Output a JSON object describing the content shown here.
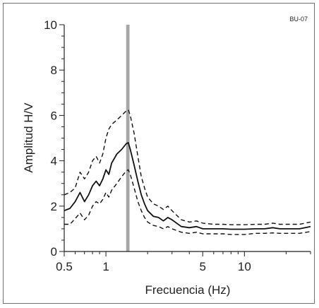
{
  "chart_data": {
    "type": "line",
    "title": "",
    "tag": "BU-07",
    "xlabel": "Frecuencia (Hz)",
    "ylabel": "Amplitud H/V",
    "xscale": "log",
    "xlim": [
      0.5,
      30
    ],
    "ylim": [
      0,
      10
    ],
    "x_tick_labels": [
      {
        "value": 0.5,
        "label": "0.5"
      },
      {
        "value": 1,
        "label": "1"
      },
      {
        "value": 5,
        "label": "5"
      },
      {
        "value": 10,
        "label": "10"
      }
    ],
    "y_tick_labels": [
      {
        "value": 0,
        "label": "0"
      },
      {
        "value": 2,
        "label": "2"
      },
      {
        "value": 4,
        "label": "4"
      },
      {
        "value": 6,
        "label": "6"
      },
      {
        "value": 8,
        "label": "8"
      },
      {
        "value": 10,
        "label": "10"
      }
    ],
    "grid": false,
    "legend": "none",
    "peak_band": {
      "x0": 1.4,
      "x1": 1.48,
      "color": "#a6a6a6"
    },
    "series": [
      {
        "style": "solid",
        "color": "#111111",
        "x": [
          0.5,
          0.55,
          0.6,
          0.65,
          0.7,
          0.75,
          0.8,
          0.85,
          0.9,
          0.95,
          1.0,
          1.05,
          1.1,
          1.2,
          1.3,
          1.4,
          1.45,
          1.5,
          1.6,
          1.7,
          1.8,
          1.9,
          2.0,
          2.2,
          2.4,
          2.6,
          2.8,
          3.0,
          3.5,
          4.0,
          4.5,
          5.0,
          6.0,
          7.0,
          8.0,
          10.0,
          12.0,
          14.0,
          16.0,
          18.0,
          20.0,
          25.0,
          30.0
        ],
        "values": [
          1.8,
          1.9,
          2.2,
          2.6,
          2.2,
          2.5,
          2.9,
          3.1,
          2.9,
          3.2,
          3.6,
          3.4,
          3.9,
          4.3,
          4.5,
          4.75,
          4.8,
          4.5,
          3.8,
          3.1,
          2.5,
          2.1,
          1.8,
          1.55,
          1.5,
          1.35,
          1.5,
          1.4,
          1.1,
          1.05,
          1.1,
          1.0,
          1.0,
          1.0,
          0.98,
          0.98,
          1.0,
          1.0,
          1.05,
          1.0,
          1.0,
          1.0,
          1.1
        ]
      },
      {
        "style": "dashed",
        "color": "#111111",
        "x": [
          0.5,
          0.55,
          0.6,
          0.65,
          0.7,
          0.75,
          0.8,
          0.85,
          0.9,
          0.95,
          1.0,
          1.05,
          1.1,
          1.2,
          1.3,
          1.4,
          1.45,
          1.5,
          1.6,
          1.7,
          1.8,
          1.9,
          2.0,
          2.2,
          2.4,
          2.6,
          2.8,
          3.0,
          3.5,
          4.0,
          4.5,
          5.0,
          6.0,
          7.0,
          8.0,
          10.0,
          12.0,
          14.0,
          16.0,
          18.0,
          20.0,
          25.0,
          30.0
        ],
        "values": [
          2.5,
          2.6,
          2.8,
          3.5,
          3.2,
          3.5,
          4.0,
          4.2,
          3.9,
          4.3,
          5.0,
          5.4,
          5.6,
          5.8,
          6.0,
          6.2,
          6.25,
          6.0,
          5.2,
          4.2,
          3.3,
          2.8,
          2.4,
          2.1,
          2.0,
          1.85,
          2.0,
          1.8,
          1.4,
          1.3,
          1.35,
          1.25,
          1.2,
          1.2,
          1.18,
          1.18,
          1.2,
          1.2,
          1.25,
          1.2,
          1.2,
          1.2,
          1.3
        ]
      },
      {
        "style": "dashed",
        "color": "#111111",
        "x": [
          0.5,
          0.55,
          0.6,
          0.65,
          0.7,
          0.75,
          0.8,
          0.85,
          0.9,
          0.95,
          1.0,
          1.05,
          1.1,
          1.2,
          1.3,
          1.4,
          1.45,
          1.5,
          1.6,
          1.7,
          1.8,
          1.9,
          2.0,
          2.2,
          2.4,
          2.6,
          2.8,
          3.0,
          3.5,
          4.0,
          4.5,
          5.0,
          6.0,
          7.0,
          8.0,
          10.0,
          12.0,
          14.0,
          16.0,
          18.0,
          20.0,
          25.0,
          30.0
        ],
        "values": [
          1.2,
          1.2,
          1.45,
          1.7,
          1.4,
          1.6,
          2.0,
          2.2,
          2.1,
          2.3,
          2.6,
          2.4,
          2.7,
          3.0,
          3.3,
          3.55,
          3.6,
          3.4,
          2.8,
          2.2,
          1.8,
          1.5,
          1.3,
          1.15,
          1.1,
          1.0,
          1.1,
          1.0,
          0.85,
          0.8,
          0.85,
          0.78,
          0.78,
          0.78,
          0.75,
          0.75,
          0.8,
          0.8,
          0.82,
          0.8,
          0.8,
          0.8,
          0.88
        ]
      }
    ]
  }
}
